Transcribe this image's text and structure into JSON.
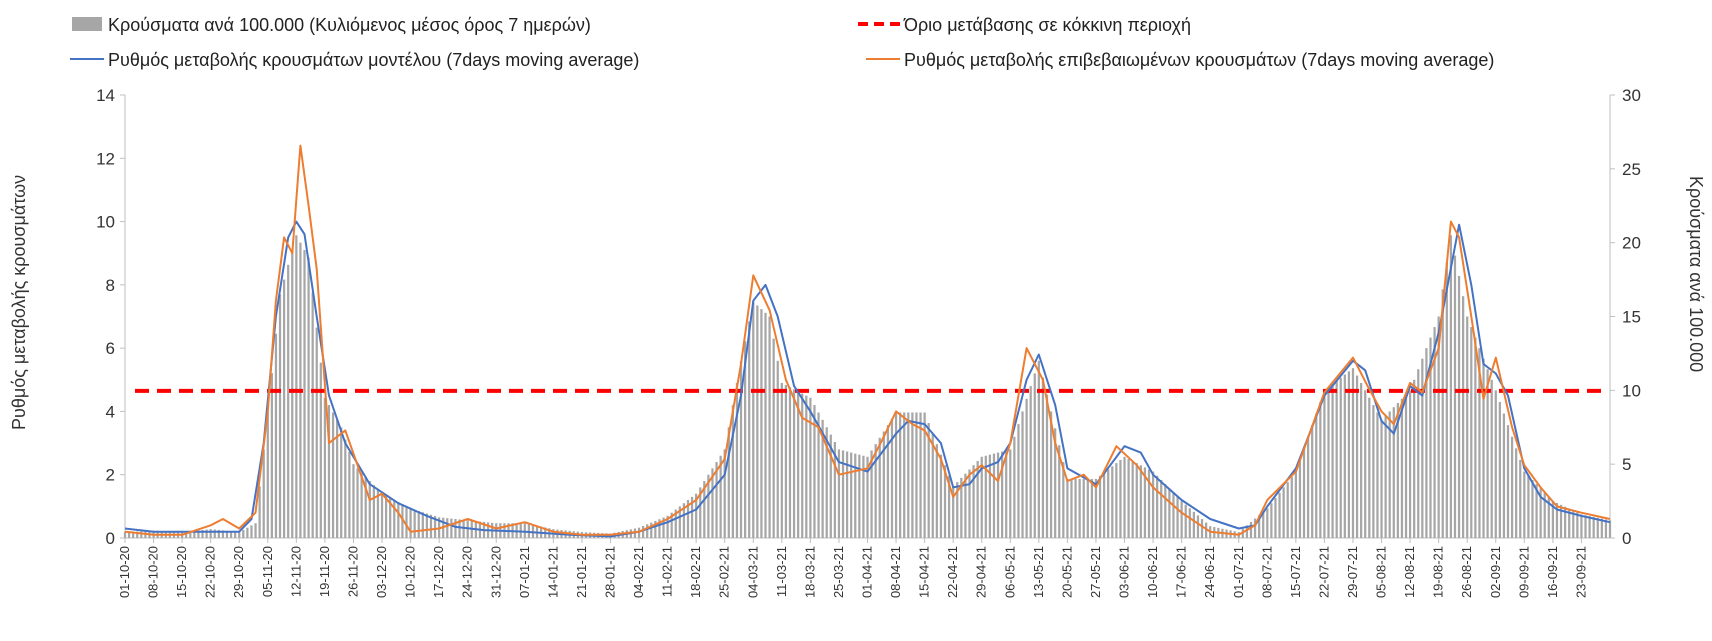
{
  "chart_data": {
    "type": "bar+line",
    "legend": {
      "bars": "Κρούσματα ανά 100.000 (Κυλιόμενος μέσος όρος 7 ημερών)",
      "threshold": "Όριο μετάβασης σε κόκκινη περιοχή",
      "model": "Ρυθμός μεταβολής κρουσμάτων μοντέλου (7days moving average)",
      "confirmed": "Ρυθμός μεταβολής επιβεβαιωμένων κρουσμάτων (7days moving average)"
    },
    "ylabel_left": "Ρυθμός μεταβολής κρουσμάτων",
    "ylabel_right": "Κρούσματα ανά 100.000",
    "ylim_left": [
      0,
      14
    ],
    "ylim_right": [
      0,
      30
    ],
    "yticks_left": [
      "0",
      "2",
      "4",
      "6",
      "8",
      "10",
      "12",
      "14"
    ],
    "yticks_right": [
      "0",
      "5",
      "10",
      "15",
      "20",
      "25",
      "30"
    ],
    "x_start": "2020-10-01",
    "x_end": "2021-09-30",
    "x_tick_labels": [
      "01-10-20",
      "08-10-20",
      "15-10-20",
      "22-10-20",
      "29-10-20",
      "05-11-20",
      "12-11-20",
      "19-11-20",
      "26-11-20",
      "03-12-20",
      "10-12-20",
      "17-12-20",
      "24-12-20",
      "31-12-20",
      "07-01-21",
      "14-01-21",
      "21-01-21",
      "28-01-21",
      "04-02-21",
      "11-02-21",
      "18-02-21",
      "25-02-21",
      "04-03-21",
      "11-03-21",
      "18-03-21",
      "25-03-21",
      "01-04-21",
      "08-04-21",
      "15-04-21",
      "22-04-21",
      "29-04-21",
      "06-05-21",
      "13-05-21",
      "20-05-21",
      "27-05-21",
      "03-06-21",
      "10-06-21",
      "17-06-21",
      "24-06-21",
      "01-07-21",
      "08-07-21",
      "15-07-21",
      "22-07-21",
      "29-07-21",
      "05-08-21",
      "12-08-21",
      "19-08-21",
      "26-08-21",
      "02-09-21",
      "09-09-21",
      "16-09-21",
      "23-09-21"
    ],
    "threshold_value": 4.65,
    "bars_per_100k": [
      [
        "2020-10-01",
        0.4
      ],
      [
        "2020-10-08",
        0.5
      ],
      [
        "2020-10-15",
        0.4
      ],
      [
        "2020-10-22",
        0.6
      ],
      [
        "2020-10-29",
        0.4
      ],
      [
        "2020-11-02",
        1.0
      ],
      [
        "2020-11-05",
        8.5
      ],
      [
        "2020-11-08",
        16.5
      ],
      [
        "2020-11-12",
        20.5
      ],
      [
        "2020-11-15",
        19.0
      ],
      [
        "2020-11-19",
        9.5
      ],
      [
        "2020-11-23",
        7.5
      ],
      [
        "2020-11-26",
        5.0
      ],
      [
        "2020-12-03",
        3.0
      ],
      [
        "2020-12-10",
        2.0
      ],
      [
        "2020-12-17",
        1.4
      ],
      [
        "2020-12-24",
        1.2
      ],
      [
        "2020-12-31",
        1.0
      ],
      [
        "2021-01-07",
        1.0
      ],
      [
        "2021-01-14",
        0.6
      ],
      [
        "2021-01-21",
        0.4
      ],
      [
        "2021-01-28",
        0.3
      ],
      [
        "2021-02-04",
        0.7
      ],
      [
        "2021-02-11",
        1.5
      ],
      [
        "2021-02-18",
        3.0
      ],
      [
        "2021-02-25",
        6.0
      ],
      [
        "2021-03-01",
        12.0
      ],
      [
        "2021-03-04",
        16.0
      ],
      [
        "2021-03-08",
        15.0
      ],
      [
        "2021-03-11",
        10.5
      ],
      [
        "2021-03-18",
        9.5
      ],
      [
        "2021-03-25",
        6.0
      ],
      [
        "2021-04-01",
        5.5
      ],
      [
        "2021-04-08",
        8.5
      ],
      [
        "2021-04-15",
        8.5
      ],
      [
        "2021-04-22",
        3.5
      ],
      [
        "2021-04-29",
        5.5
      ],
      [
        "2021-05-06",
        6.0
      ],
      [
        "2021-05-13",
        12.0
      ],
      [
        "2021-05-20",
        4.0
      ],
      [
        "2021-05-27",
        4.0
      ],
      [
        "2021-06-03",
        5.5
      ],
      [
        "2021-06-10",
        4.5
      ],
      [
        "2021-06-17",
        2.5
      ],
      [
        "2021-06-24",
        0.8
      ],
      [
        "2021-07-01",
        0.4
      ],
      [
        "2021-07-08",
        2.0
      ],
      [
        "2021-07-15",
        4.5
      ],
      [
        "2021-07-22",
        10.0
      ],
      [
        "2021-07-29",
        11.5
      ],
      [
        "2021-08-05",
        8.0
      ],
      [
        "2021-08-12",
        10.0
      ],
      [
        "2021-08-19",
        15.0
      ],
      [
        "2021-08-22",
        20.5
      ],
      [
        "2021-08-26",
        15.0
      ],
      [
        "2021-09-02",
        10.0
      ],
      [
        "2021-09-09",
        4.5
      ],
      [
        "2021-09-16",
        2.5
      ],
      [
        "2021-09-23",
        1.6
      ],
      [
        "2021-09-30",
        1.2
      ]
    ],
    "series": [
      {
        "name": "Ρυθμός μεταβολής κρουσμάτων μοντέλου (7days moving average)",
        "color": "#4472C4",
        "points": [
          [
            "2020-10-01",
            0.3
          ],
          [
            "2020-10-08",
            0.2
          ],
          [
            "2020-10-15",
            0.2
          ],
          [
            "2020-10-22",
            0.2
          ],
          [
            "2020-10-29",
            0.2
          ],
          [
            "2020-11-01",
            0.6
          ],
          [
            "2020-11-04",
            3.0
          ],
          [
            "2020-11-07",
            7.0
          ],
          [
            "2020-11-10",
            9.5
          ],
          [
            "2020-11-12",
            10.0
          ],
          [
            "2020-11-14",
            9.6
          ],
          [
            "2020-11-17",
            7.0
          ],
          [
            "2020-11-20",
            4.5
          ],
          [
            "2020-11-24",
            3.0
          ],
          [
            "2020-11-30",
            1.7
          ],
          [
            "2020-12-07",
            1.1
          ],
          [
            "2020-12-14",
            0.7
          ],
          [
            "2020-12-21",
            0.35
          ],
          [
            "2020-12-28",
            0.25
          ],
          [
            "2021-01-07",
            0.2
          ],
          [
            "2021-01-18",
            0.1
          ],
          [
            "2021-01-28",
            0.05
          ],
          [
            "2021-02-04",
            0.2
          ],
          [
            "2021-02-11",
            0.5
          ],
          [
            "2021-02-18",
            0.9
          ],
          [
            "2021-02-25",
            2.0
          ],
          [
            "2021-03-01",
            4.5
          ],
          [
            "2021-03-04",
            7.5
          ],
          [
            "2021-03-07",
            8.0
          ],
          [
            "2021-03-10",
            7.0
          ],
          [
            "2021-03-14",
            4.8
          ],
          [
            "2021-03-18",
            4.0
          ],
          [
            "2021-03-25",
            2.4
          ],
          [
            "2021-04-01",
            2.1
          ],
          [
            "2021-04-08",
            3.3
          ],
          [
            "2021-04-11",
            3.7
          ],
          [
            "2021-04-15",
            3.6
          ],
          [
            "2021-04-19",
            3.0
          ],
          [
            "2021-04-22",
            1.6
          ],
          [
            "2021-04-26",
            1.7
          ],
          [
            "2021-04-29",
            2.2
          ],
          [
            "2021-05-03",
            2.4
          ],
          [
            "2021-05-06",
            3.0
          ],
          [
            "2021-05-10",
            5.0
          ],
          [
            "2021-05-13",
            5.8
          ],
          [
            "2021-05-17",
            4.2
          ],
          [
            "2021-05-20",
            2.2
          ],
          [
            "2021-05-27",
            1.7
          ],
          [
            "2021-06-03",
            2.9
          ],
          [
            "2021-06-07",
            2.7
          ],
          [
            "2021-06-10",
            2.0
          ],
          [
            "2021-06-17",
            1.2
          ],
          [
            "2021-06-24",
            0.6
          ],
          [
            "2021-07-01",
            0.3
          ],
          [
            "2021-07-05",
            0.4
          ],
          [
            "2021-07-08",
            1.0
          ],
          [
            "2021-07-15",
            2.2
          ],
          [
            "2021-07-22",
            4.5
          ],
          [
            "2021-07-29",
            5.6
          ],
          [
            "2021-08-01",
            5.3
          ],
          [
            "2021-08-05",
            3.7
          ],
          [
            "2021-08-08",
            3.3
          ],
          [
            "2021-08-12",
            4.8
          ],
          [
            "2021-08-15",
            4.5
          ],
          [
            "2021-08-19",
            6.5
          ],
          [
            "2021-08-24",
            9.9
          ],
          [
            "2021-08-27",
            8.0
          ],
          [
            "2021-08-30",
            5.5
          ],
          [
            "2021-09-02",
            5.2
          ],
          [
            "2021-09-05",
            4.5
          ],
          [
            "2021-09-09",
            2.2
          ],
          [
            "2021-09-13",
            1.3
          ],
          [
            "2021-09-17",
            0.9
          ],
          [
            "2021-09-23",
            0.7
          ],
          [
            "2021-09-30",
            0.5
          ]
        ]
      },
      {
        "name": "Ρυθμός μεταβολής επιβεβαιωμένων κρουσμάτων (7days moving average)",
        "color": "#ED7D31",
        "points": [
          [
            "2020-10-01",
            0.2
          ],
          [
            "2020-10-08",
            0.1
          ],
          [
            "2020-10-15",
            0.1
          ],
          [
            "2020-10-22",
            0.4
          ],
          [
            "2020-10-25",
            0.6
          ],
          [
            "2020-10-29",
            0.3
          ],
          [
            "2020-11-02",
            0.8
          ],
          [
            "2020-11-05",
            4.0
          ],
          [
            "2020-11-07",
            7.5
          ],
          [
            "2020-11-09",
            9.5
          ],
          [
            "2020-11-11",
            9.0
          ],
          [
            "2020-11-13",
            12.4
          ],
          [
            "2020-11-15",
            10.5
          ],
          [
            "2020-11-17",
            8.5
          ],
          [
            "2020-11-20",
            3.0
          ],
          [
            "2020-11-24",
            3.4
          ],
          [
            "2020-11-30",
            1.2
          ],
          [
            "2020-12-03",
            1.4
          ],
          [
            "2020-12-07",
            0.8
          ],
          [
            "2020-12-10",
            0.2
          ],
          [
            "2020-12-17",
            0.3
          ],
          [
            "2020-12-24",
            0.6
          ],
          [
            "2020-12-31",
            0.3
          ],
          [
            "2021-01-07",
            0.5
          ],
          [
            "2021-01-14",
            0.2
          ],
          [
            "2021-01-21",
            0.1
          ],
          [
            "2021-01-28",
            0.1
          ],
          [
            "2021-02-04",
            0.2
          ],
          [
            "2021-02-11",
            0.6
          ],
          [
            "2021-02-18",
            1.2
          ],
          [
            "2021-02-25",
            2.5
          ],
          [
            "2021-03-01",
            5.5
          ],
          [
            "2021-03-04",
            8.3
          ],
          [
            "2021-03-08",
            7.2
          ],
          [
            "2021-03-12",
            5.0
          ],
          [
            "2021-03-16",
            3.8
          ],
          [
            "2021-03-20",
            3.5
          ],
          [
            "2021-03-25",
            2.0
          ],
          [
            "2021-04-01",
            2.2
          ],
          [
            "2021-04-05",
            3.2
          ],
          [
            "2021-04-08",
            4.0
          ],
          [
            "2021-04-12",
            3.6
          ],
          [
            "2021-04-15",
            3.4
          ],
          [
            "2021-04-19",
            2.5
          ],
          [
            "2021-04-22",
            1.3
          ],
          [
            "2021-04-26",
            2.0
          ],
          [
            "2021-04-29",
            2.3
          ],
          [
            "2021-05-03",
            1.8
          ],
          [
            "2021-05-06",
            3.0
          ],
          [
            "2021-05-10",
            6.0
          ],
          [
            "2021-05-14",
            5.0
          ],
          [
            "2021-05-17",
            3.0
          ],
          [
            "2021-05-20",
            1.8
          ],
          [
            "2021-05-24",
            2.0
          ],
          [
            "2021-05-27",
            1.6
          ],
          [
            "2021-06-01",
            2.9
          ],
          [
            "2021-06-06",
            2.3
          ],
          [
            "2021-06-10",
            1.6
          ],
          [
            "2021-06-17",
            0.8
          ],
          [
            "2021-06-24",
            0.2
          ],
          [
            "2021-07-01",
            0.1
          ],
          [
            "2021-07-05",
            0.4
          ],
          [
            "2021-07-08",
            1.2
          ],
          [
            "2021-07-15",
            2.1
          ],
          [
            "2021-07-22",
            4.6
          ],
          [
            "2021-07-29",
            5.7
          ],
          [
            "2021-08-02",
            4.7
          ],
          [
            "2021-08-05",
            4.0
          ],
          [
            "2021-08-08",
            3.6
          ],
          [
            "2021-08-12",
            4.9
          ],
          [
            "2021-08-15",
            4.6
          ],
          [
            "2021-08-19",
            6.0
          ],
          [
            "2021-08-22",
            10.0
          ],
          [
            "2021-08-24",
            9.5
          ],
          [
            "2021-08-27",
            7.0
          ],
          [
            "2021-08-30",
            4.4
          ],
          [
            "2021-09-02",
            5.7
          ],
          [
            "2021-09-06",
            3.5
          ],
          [
            "2021-09-09",
            2.3
          ],
          [
            "2021-09-13",
            1.6
          ],
          [
            "2021-09-17",
            1.0
          ],
          [
            "2021-09-23",
            0.8
          ],
          [
            "2021-09-30",
            0.6
          ]
        ]
      }
    ],
    "colors": {
      "bars": "#A6A6A6",
      "threshold": "#FF0000",
      "grid": "none"
    },
    "legend_position": "top"
  }
}
